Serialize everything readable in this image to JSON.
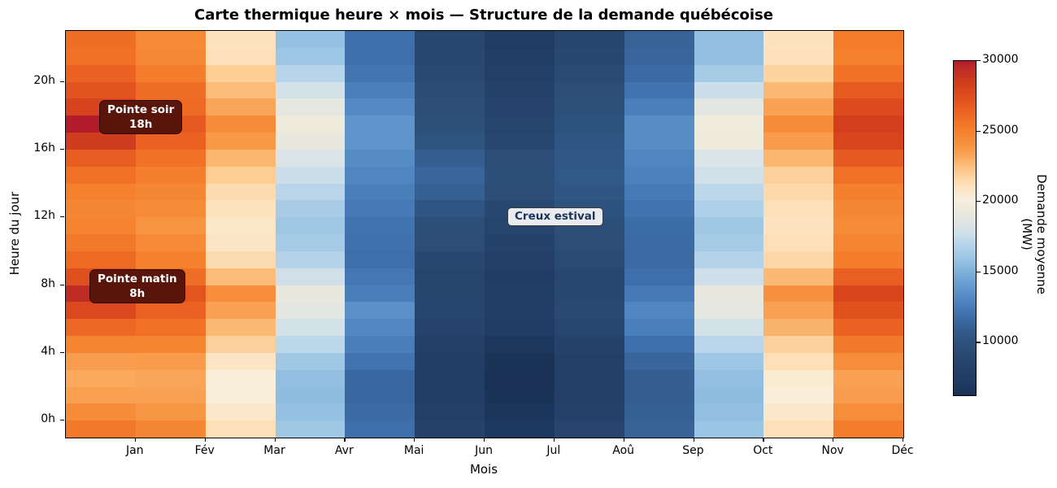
{
  "title": "Carte thermique heure × mois — Structure de la demande québécoise",
  "x_axis": {
    "label": "Mois",
    "ticks": [
      "Jan",
      "Fév",
      "Mar",
      "Avr",
      "Mai",
      "Jun",
      "Jul",
      "Aoû",
      "Sep",
      "Oct",
      "Nov",
      "Déc"
    ]
  },
  "y_axis": {
    "label": "Heure du jour",
    "ticks": [
      "0h",
      "4h",
      "8h",
      "12h",
      "16h",
      "20h"
    ],
    "tick_hours": [
      0,
      4,
      8,
      12,
      16,
      20
    ]
  },
  "colorbar": {
    "label": "Demande moyenne (MW)",
    "ticks": [
      "30000",
      "25000",
      "20000",
      "15000",
      "10000"
    ],
    "tick_values": [
      30000,
      25000,
      20000,
      15000,
      10000
    ],
    "vmin": 6270,
    "vmax": 30000
  },
  "annotations": [
    {
      "id": "pointe-soir",
      "line1": "Pointe soir",
      "line2": "18h"
    },
    {
      "id": "pointe-matin",
      "line1": "Pointe matin",
      "line2": "8h"
    },
    {
      "id": "creux",
      "line1": "Creux estival"
    }
  ],
  "chart_data": {
    "type": "heatmap",
    "title": "Carte thermique heure × mois — Structure de la demande québécoise",
    "xlabel": "Mois",
    "ylabel": "Heure du jour",
    "unit": "MW",
    "orientation": "hours 0-23 bottom to top, months left to right",
    "categories": [
      "Jan",
      "Fév",
      "Mar",
      "Avr",
      "Mai",
      "Jun",
      "Jul",
      "Aoû",
      "Sep",
      "Oct",
      "Nov",
      "Déc"
    ],
    "hours": [
      0,
      1,
      2,
      3,
      4,
      5,
      6,
      7,
      8,
      9,
      10,
      11,
      12,
      13,
      14,
      15,
      16,
      17,
      18,
      19,
      20,
      21,
      22,
      23
    ],
    "series": [
      {
        "name": "Jan",
        "values": [
          25400,
          24400,
          23500,
          23200,
          23600,
          24800,
          26200,
          27800,
          29400,
          27400,
          26100,
          25400,
          24900,
          24700,
          25000,
          25700,
          26700,
          28500,
          29900,
          28100,
          27200,
          26400,
          25700,
          25900
        ]
      },
      {
        "name": "Fév",
        "values": [
          24700,
          23900,
          23400,
          23300,
          23700,
          24800,
          25700,
          26500,
          27100,
          25900,
          25000,
          24500,
          24000,
          24400,
          24700,
          25100,
          25700,
          26500,
          26900,
          26100,
          25900,
          25200,
          24600,
          24500
        ]
      },
      {
        "name": "Mar",
        "values": [
          21200,
          20700,
          20300,
          20300,
          20900,
          21900,
          22700,
          23400,
          24300,
          22600,
          21400,
          20900,
          20800,
          21000,
          21400,
          22000,
          22800,
          23800,
          24400,
          23300,
          22600,
          22000,
          21100,
          21000
        ]
      },
      {
        "name": "Avr",
        "values": [
          16200,
          15800,
          15600,
          15700,
          16200,
          17200,
          18000,
          18800,
          19100,
          17900,
          16900,
          16400,
          16200,
          16500,
          17100,
          17700,
          18300,
          19200,
          19500,
          19000,
          18000,
          17000,
          16100,
          15800
        ]
      },
      {
        "name": "Mai",
        "values": [
          11900,
          11700,
          11500,
          11500,
          12100,
          12600,
          13100,
          13500,
          12600,
          12300,
          11900,
          12000,
          12100,
          12400,
          12700,
          13000,
          13300,
          13800,
          13800,
          13200,
          12700,
          12200,
          11900,
          11900
        ]
      },
      {
        "name": "Jun",
        "values": [
          8300,
          7900,
          7700,
          7600,
          7700,
          7900,
          8400,
          8800,
          8700,
          8600,
          9000,
          9500,
          9800,
          10300,
          11100,
          11400,
          11000,
          10200,
          9900,
          9700,
          9400,
          9100,
          9000,
          8900
        ]
      },
      {
        "name": "Jul",
        "values": [
          6900,
          6600,
          6400,
          6300,
          6400,
          6700,
          7400,
          7700,
          7600,
          7500,
          7900,
          8300,
          8600,
          9000,
          9600,
          9800,
          9500,
          8900,
          8600,
          8400,
          8100,
          7800,
          7600,
          7300
        ]
      },
      {
        "name": "Aoû",
        "values": [
          8500,
          8100,
          7900,
          7900,
          8000,
          8300,
          8900,
          9100,
          9000,
          8900,
          9200,
          9600,
          9800,
          10100,
          10400,
          10600,
          10500,
          10300,
          10100,
          9900,
          9500,
          9200,
          9000,
          8800
        ]
      },
      {
        "name": "Sep",
        "values": [
          11300,
          11100,
          11000,
          11000,
          11400,
          11900,
          12700,
          13000,
          12400,
          11900,
          11600,
          11700,
          11800,
          12100,
          12500,
          12800,
          13000,
          13400,
          13400,
          12700,
          12100,
          11700,
          11400,
          11300
        ]
      },
      {
        "name": "Oct",
        "values": [
          16000,
          15700,
          15600,
          15700,
          16100,
          17100,
          18000,
          19000,
          19200,
          17800,
          16900,
          16400,
          16200,
          16700,
          17200,
          17900,
          18300,
          19500,
          19600,
          18800,
          17700,
          16400,
          15700,
          15700
        ]
      },
      {
        "name": "Nov",
        "values": [
          21200,
          20700,
          20300,
          20500,
          21200,
          21900,
          22900,
          23500,
          24100,
          22700,
          21600,
          21200,
          21000,
          21200,
          21500,
          21900,
          22800,
          23700,
          24400,
          23400,
          22700,
          21800,
          21100,
          21000
        ]
      },
      {
        "name": "Déc",
        "values": [
          25200,
          24300,
          23600,
          23400,
          24300,
          25400,
          26500,
          27300,
          28000,
          26600,
          25200,
          24800,
          24400,
          24700,
          25100,
          25800,
          26900,
          28000,
          28300,
          27700,
          26800,
          25700,
          25000,
          25300
        ]
      }
    ],
    "colormap_stops": [
      [
        6270,
        "#1a3055"
      ],
      [
        7000,
        "#1e3a61"
      ],
      [
        8000,
        "#234068"
      ],
      [
        9000,
        "#284871"
      ],
      [
        10000,
        "#2d517c"
      ],
      [
        10700,
        "#325a89"
      ],
      [
        11400,
        "#38659c"
      ],
      [
        12100,
        "#4173af"
      ],
      [
        13000,
        "#4f86c0"
      ],
      [
        14000,
        "#6399ce"
      ],
      [
        15000,
        "#7fb0da"
      ],
      [
        16000,
        "#9ac5e4"
      ],
      [
        17000,
        "#b7d4ea"
      ],
      [
        17800,
        "#cfdfe9"
      ],
      [
        18600,
        "#e0e5e3"
      ],
      [
        19400,
        "#ece9dc"
      ],
      [
        20200,
        "#f8efde"
      ],
      [
        21000,
        "#fde3c0"
      ],
      [
        21800,
        "#fdd3a0"
      ],
      [
        22600,
        "#fbbd79"
      ],
      [
        23400,
        "#f9a254"
      ],
      [
        24200,
        "#f68f3c"
      ],
      [
        25000,
        "#f5812d"
      ],
      [
        25800,
        "#f07026"
      ],
      [
        26600,
        "#e95f21"
      ],
      [
        27400,
        "#e04f1e"
      ],
      [
        28200,
        "#d5411c"
      ],
      [
        29000,
        "#c63421"
      ],
      [
        29600,
        "#ba2827"
      ],
      [
        30000,
        "#b0182b"
      ]
    ],
    "vmin": 6270,
    "vmax": 30000
  }
}
